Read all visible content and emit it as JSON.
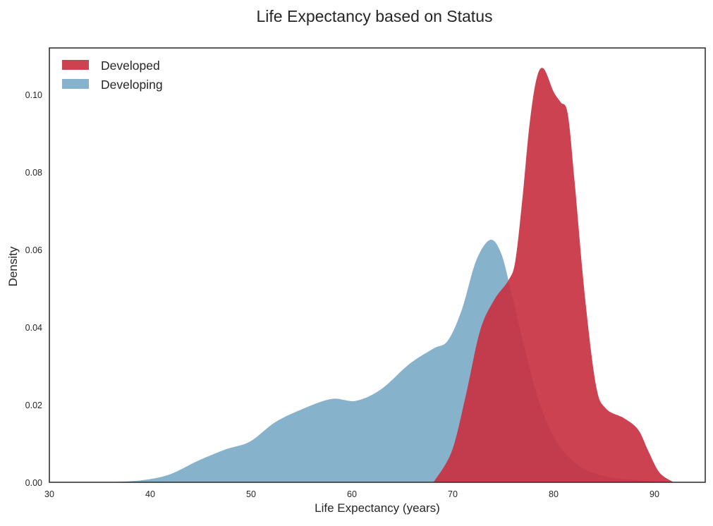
{
  "chart_data": {
    "type": "area",
    "title": "Life Expectancy based on Status",
    "xlabel": "Life Expectancy (years)",
    "ylabel": "Density",
    "xlim": [
      30,
      95
    ],
    "ylim": [
      0,
      0.112
    ],
    "xticks": [
      30,
      40,
      50,
      60,
      70,
      80,
      90
    ],
    "xtick_labels": [
      "30",
      "40",
      "50",
      "60",
      "70",
      "80",
      "90"
    ],
    "yticks": [
      0.0,
      0.02,
      0.04,
      0.06,
      0.08,
      0.1
    ],
    "ytick_labels": [
      "0.00",
      "0.02",
      "0.04",
      "0.06",
      "0.08",
      "0.10"
    ],
    "grid": false,
    "legend_position": "top-left",
    "series": [
      {
        "name": "Developing",
        "color": "#75a7c4",
        "x": [
          35.6,
          39.1,
          41.9,
          44.7,
          47.5,
          49.9,
          52.4,
          55.2,
          58.0,
          60.4,
          62.9,
          65.7,
          68.1,
          69.5,
          70.9,
          72.3,
          73.7,
          74.8,
          75.8,
          77.2,
          78.6,
          80.3,
          82.4,
          85.2,
          89.4,
          91.5
        ],
        "y": [
          0.0,
          0.0005,
          0.002,
          0.0055,
          0.0085,
          0.0105,
          0.0155,
          0.019,
          0.0215,
          0.021,
          0.024,
          0.0305,
          0.0345,
          0.0365,
          0.0445,
          0.057,
          0.0625,
          0.059,
          0.049,
          0.034,
          0.0205,
          0.0105,
          0.0045,
          0.0015,
          0.0003,
          0.0
        ]
      },
      {
        "name": "Developed",
        "color": "#c93242",
        "x": [
          68.1,
          69.9,
          71.3,
          72.7,
          74.1,
          75.5,
          76.2,
          76.9,
          77.6,
          78.3,
          79.0,
          80.0,
          80.7,
          81.4,
          82.1,
          83.1,
          84.2,
          85.2,
          87.0,
          88.4,
          89.4,
          90.5,
          91.9
        ],
        "y": [
          0.0,
          0.008,
          0.0225,
          0.039,
          0.047,
          0.052,
          0.057,
          0.073,
          0.092,
          0.104,
          0.1067,
          0.1007,
          0.098,
          0.095,
          0.077,
          0.048,
          0.025,
          0.019,
          0.0165,
          0.0135,
          0.008,
          0.0025,
          0.0
        ]
      }
    ],
    "legend": [
      {
        "label": "Developed",
        "color": "#c93242"
      },
      {
        "label": "Developing",
        "color": "#75a7c4"
      }
    ]
  }
}
